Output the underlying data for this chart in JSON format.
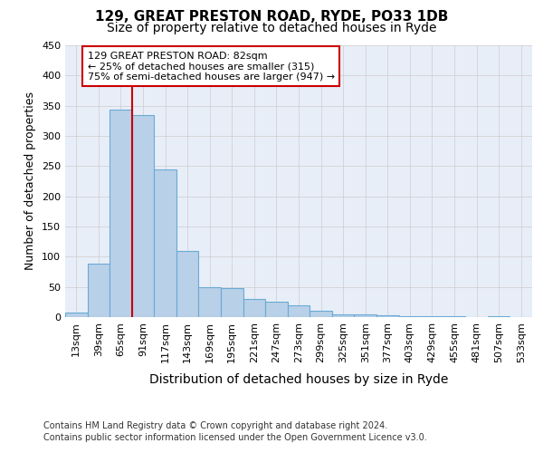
{
  "title1": "129, GREAT PRESTON ROAD, RYDE, PO33 1DB",
  "title2": "Size of property relative to detached houses in Ryde",
  "xlabel": "Distribution of detached houses by size in Ryde",
  "ylabel": "Number of detached properties",
  "categories": [
    "13sqm",
    "39sqm",
    "65sqm",
    "91sqm",
    "117sqm",
    "143sqm",
    "169sqm",
    "195sqm",
    "221sqm",
    "247sqm",
    "273sqm",
    "299sqm",
    "325sqm",
    "351sqm",
    "377sqm",
    "403sqm",
    "429sqm",
    "455sqm",
    "481sqm",
    "507sqm",
    "533sqm"
  ],
  "values": [
    7,
    88,
    343,
    335,
    244,
    109,
    50,
    48,
    30,
    25,
    20,
    10,
    5,
    4,
    3,
    2,
    1,
    1,
    0,
    1,
    0
  ],
  "bar_color": "#b8d0e8",
  "bar_edge_color": "#6aaad4",
  "annotation_line1": "129 GREAT PRESTON ROAD: 82sqm",
  "annotation_line2": "← 25% of detached houses are smaller (315)",
  "annotation_line3": "75% of semi-detached houses are larger (947) →",
  "vline_color": "#cc0000",
  "box_edge_color": "#cc0000",
  "footer1": "Contains HM Land Registry data © Crown copyright and database right 2024.",
  "footer2": "Contains public sector information licensed under the Open Government Licence v3.0.",
  "plot_bg_color": "#e8eef8",
  "ylim": [
    0,
    450
  ],
  "yticks": [
    0,
    50,
    100,
    150,
    200,
    250,
    300,
    350,
    400,
    450
  ],
  "title1_fontsize": 11,
  "title2_fontsize": 10,
  "ylabel_fontsize": 9,
  "xlabel_fontsize": 10,
  "tick_fontsize": 8,
  "footer_fontsize": 7
}
